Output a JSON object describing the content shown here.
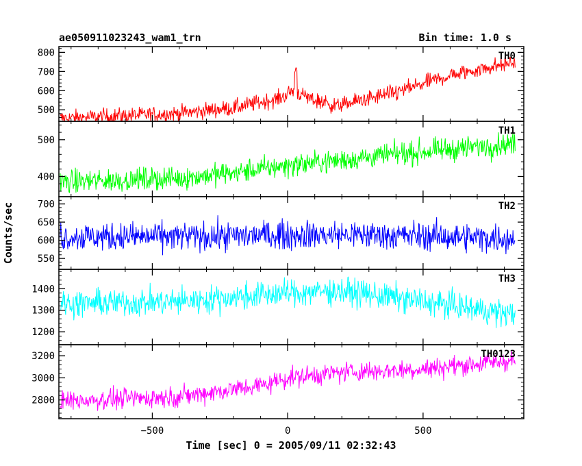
{
  "header": {
    "title": "ae050911023243_wam1_trn",
    "bin_time": "Bin time: 1.0 s"
  },
  "chart_data": {
    "type": "line",
    "xlabel": "Time [sec] 0 = 2005/09/11 02:32:43",
    "ylabel": "Counts/sec",
    "xlim": [
      -845,
      872
    ],
    "x_ticks": [
      -500,
      0,
      500
    ],
    "x_tick_labels": [
      "−500",
      "0",
      "500"
    ],
    "x_range": [
      -840,
      840
    ],
    "x_step": 2,
    "panels": [
      {
        "name": "TH0",
        "color": "#ff0000",
        "ylim": [
          440,
          830
        ],
        "y_ticks": [
          500,
          600,
          700,
          800
        ],
        "trend": [
          [
            -840,
            455
          ],
          [
            -420,
            480
          ],
          [
            -200,
            510
          ],
          [
            -30,
            560
          ],
          [
            20,
            600
          ],
          [
            80,
            560
          ],
          [
            180,
            520
          ],
          [
            400,
            590
          ],
          [
            600,
            680
          ],
          [
            840,
            750
          ]
        ],
        "noise": 30,
        "spike": {
          "x": 30,
          "value": 720
        }
      },
      {
        "name": "TH1",
        "color": "#00ff00",
        "ylim": [
          345,
          550
        ],
        "y_ticks": [
          400,
          500
        ],
        "trend": [
          [
            -840,
            385
          ],
          [
            -400,
            395
          ],
          [
            -200,
            410
          ],
          [
            0,
            430
          ],
          [
            400,
            460
          ],
          [
            840,
            490
          ]
        ],
        "noise": 22
      },
      {
        "name": "TH2",
        "color": "#0000ff",
        "ylim": [
          520,
          720
        ],
        "y_ticks": [
          550,
          600,
          650,
          700
        ],
        "trend": [
          [
            -840,
            610
          ],
          [
            -300,
            610
          ],
          [
            0,
            615
          ],
          [
            300,
            615
          ],
          [
            840,
            605
          ]
        ],
        "noise": 28
      },
      {
        "name": "TH3",
        "color": "#00ffff",
        "ylim": [
          1140,
          1490
        ],
        "y_ticks": [
          1200,
          1300,
          1400
        ],
        "trend": [
          [
            -840,
            1330
          ],
          [
            -400,
            1340
          ],
          [
            0,
            1380
          ],
          [
            200,
            1390
          ],
          [
            500,
            1340
          ],
          [
            840,
            1280
          ]
        ],
        "noise": 45
      },
      {
        "name": "TH0123",
        "color": "#ff00ff",
        "ylim": [
          2630,
          3300
        ],
        "y_ticks": [
          2800,
          3000,
          3200
        ],
        "trend": [
          [
            -840,
            2790
          ],
          [
            -400,
            2830
          ],
          [
            -100,
            2930
          ],
          [
            0,
            3000
          ],
          [
            200,
            3050
          ],
          [
            500,
            3080
          ],
          [
            840,
            3160
          ]
        ],
        "noise": 65
      }
    ]
  }
}
